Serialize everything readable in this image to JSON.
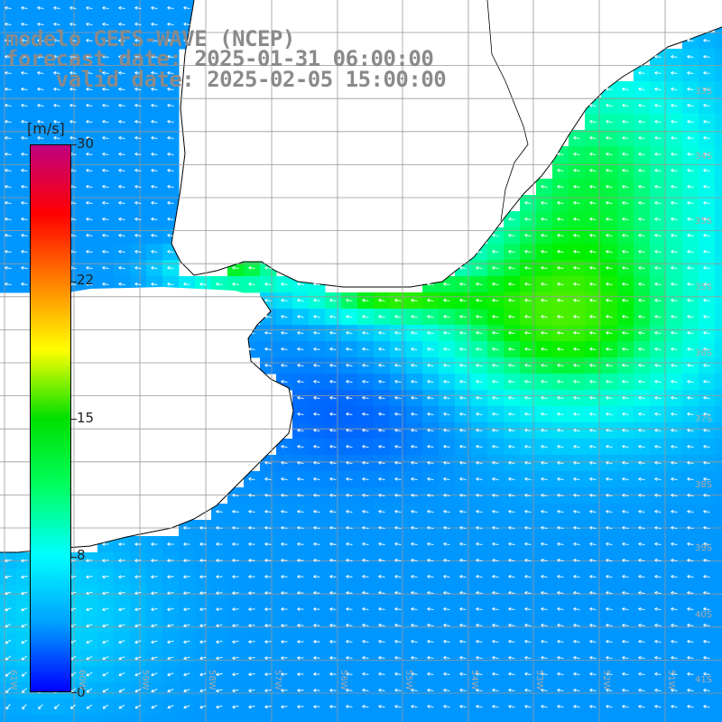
{
  "header": {
    "title": "modelo GEFS-WAVE (NCEP)",
    "forecast_line": "forecast date: 2025-01-31 06:00:00",
    "valid_line": "valid date: 2025-02-05 15:00:00"
  },
  "colorbar": {
    "units": "[m/s]",
    "ticks": [
      "30",
      "22",
      "15",
      "8",
      "0"
    ],
    "colors": [
      "#0000ff",
      "#00a0ff",
      "#00ffff",
      "#00ff60",
      "#00e000",
      "#ffff00",
      "#ff8000",
      "#ff0000",
      "#c00080"
    ]
  },
  "map": {
    "lat_labels": [
      "33S",
      "34S",
      "35S",
      "36S",
      "37S",
      "38S",
      "39S",
      "40S",
      "41S"
    ],
    "lon_labels": [
      "61W",
      "60W",
      "59W",
      "58W",
      "57W",
      "56W",
      "55W",
      "54W",
      "53W",
      "52W",
      "51W"
    ],
    "arrow_color": "#ffffff",
    "land_color": "#ffffff",
    "coast_color": "#000000",
    "grid_color": "#999999"
  }
}
